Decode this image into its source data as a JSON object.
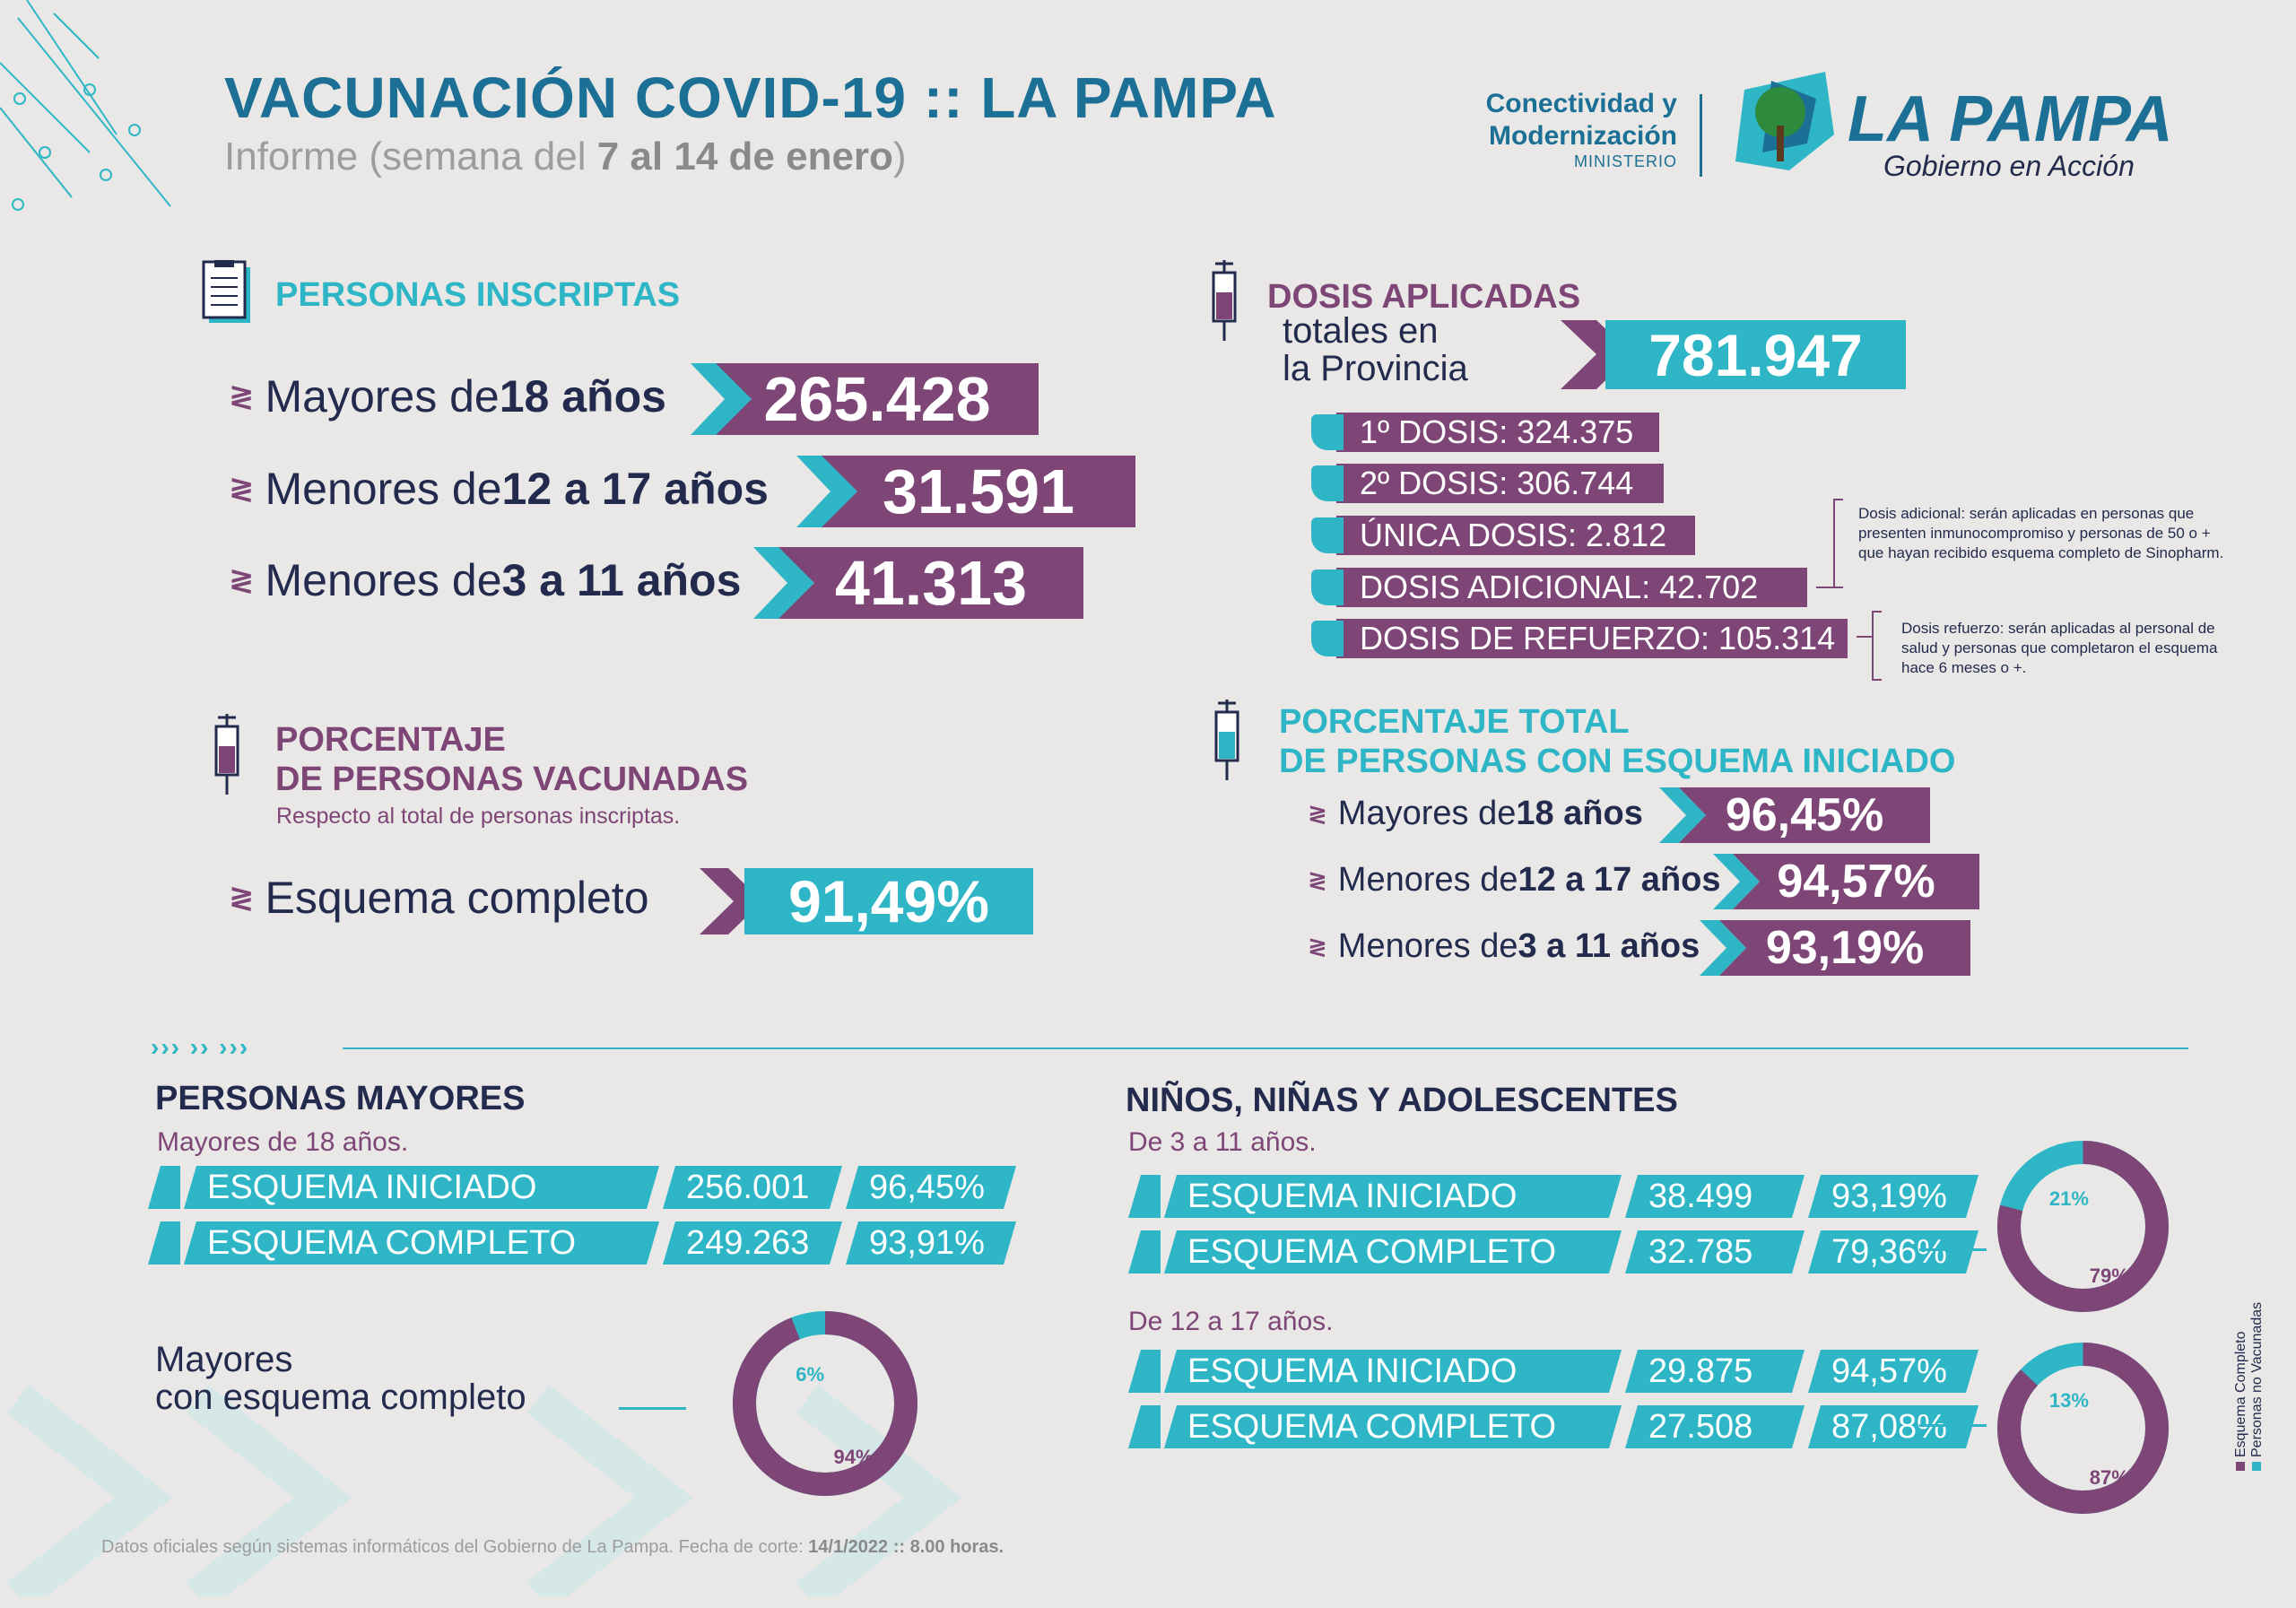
{
  "header": {
    "title": "VACUNACIÓN COVID-19 :: LA PAMPA",
    "subtitle_pre": "Informe (semana del ",
    "subtitle_bold": "7 al 14 de enero",
    "subtitle_post": ")"
  },
  "logo": {
    "ministry_line1": "Conectividad y",
    "ministry_line2": "Modernización",
    "ministry_tag": "MINISTERIO",
    "brand": "LA PAMPA",
    "brand_tagline": "Gobierno en Acción"
  },
  "inscriptas": {
    "title": "PERSONAS INSCRIPTAS",
    "rows": [
      {
        "pre": "Mayores de ",
        "bold": "18 años",
        "value": "265.428"
      },
      {
        "pre": "Menores de ",
        "bold": "12 a 17 años",
        "value": "31.591"
      },
      {
        "pre": "Menores de ",
        "bold": "3 a 11 años",
        "value": "41.313"
      }
    ]
  },
  "dosis": {
    "title": "DOSIS APLICADAS",
    "sub1": "totales en",
    "sub2": "la Provincia",
    "total": "781.947",
    "items": [
      "1º DOSIS: 324.375",
      "2º DOSIS: 306.744",
      "ÚNICA DOSIS: 2.812",
      "DOSIS ADICIONAL: 42.702",
      "DOSIS DE REFUERZO: 105.314"
    ],
    "note_adicional": "Dosis adicional: serán aplicadas en personas que presenten inmunocompromiso y personas de 50 o + que hayan recibido esquema completo de Sinopharm.",
    "note_refuerzo": "Dosis refuerzo: serán aplicadas al personal de salud y personas que completaron el esquema hace 6 meses o +."
  },
  "porcentaje_vacunadas": {
    "title1": "PORCENTAJE",
    "title2": "DE PERSONAS VACUNADAS",
    "note": "Respecto al total de personas inscriptas.",
    "label": "Esquema completo",
    "value": "91,49%"
  },
  "porcentaje_iniciado": {
    "title1": "PORCENTAJE TOTAL",
    "title2": "DE PERSONAS CON ESQUEMA INICIADO",
    "rows": [
      {
        "pre": "Mayores de ",
        "bold": "18 años",
        "value": "96,45%"
      },
      {
        "pre": "Menores de ",
        "bold": "12 a 17 años",
        "value": "94,57%"
      },
      {
        "pre": "Menores de ",
        "bold": "3 a 11 años",
        "value": "93,19%"
      }
    ]
  },
  "mayores": {
    "title": "PERSONAS MAYORES",
    "sub": "Mayores de 18 años.",
    "rows": [
      {
        "label": "ESQUEMA INICIADO",
        "count": "256.001",
        "pct": "96,45%"
      },
      {
        "label": "ESQUEMA COMPLETO",
        "count": "249.263",
        "pct": "93,91%"
      }
    ],
    "ring_caption1": "Mayores",
    "ring_caption2": "con esquema completo",
    "ring_complete": 94,
    "ring_complete_label": "94%",
    "ring_rest_label": "6%"
  },
  "ninos": {
    "title": "NIÑOS, NIÑAS Y ADOLESCENTES",
    "group1": {
      "sub": "De 3 a 11 años.",
      "rows": [
        {
          "label": "ESQUEMA INICIADO",
          "count": "38.499",
          "pct": "93,19%"
        },
        {
          "label": "ESQUEMA COMPLETO",
          "count": "32.785",
          "pct": "79,36%"
        }
      ],
      "ring_complete": 79,
      "ring_complete_label": "79%",
      "ring_rest_label": "21%"
    },
    "group2": {
      "sub": "De 12 a 17 años.",
      "rows": [
        {
          "label": "ESQUEMA INICIADO",
          "count": "29.875",
          "pct": "94,57%"
        },
        {
          "label": "ESQUEMA COMPLETO",
          "count": "27.508",
          "pct": "87,08%"
        }
      ],
      "ring_complete": 87,
      "ring_complete_label": "87%",
      "ring_rest_label": "13%"
    },
    "legend": [
      "Esquema Completo",
      "Personas no Vacunadas"
    ]
  },
  "colors": {
    "purple": "#7e4677",
    "teal": "#2eb6c6",
    "navy": "#222a4d",
    "title_blue": "#1c6f95"
  },
  "footer": {
    "text": "Datos oficiales según sistemas informáticos del Gobierno de La Pampa. Fecha de corte: ",
    "bold": "14/1/2022 :: 8.00 horas."
  }
}
